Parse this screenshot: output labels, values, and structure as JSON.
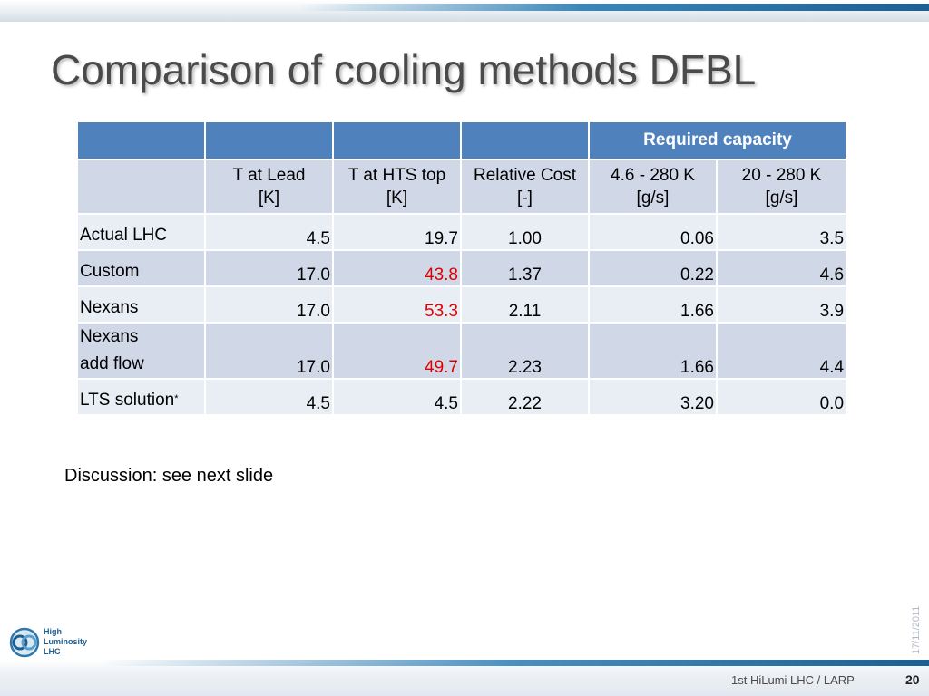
{
  "slide": {
    "title": "Comparison of cooling methods DFBL",
    "discussion": "Discussion: see next slide",
    "date": "17/11/2011",
    "footer": "1st  HiLumi LHC / LARP",
    "page_number": "20",
    "logo": {
      "line1": "High",
      "line2": "Luminosity",
      "line3": "LHC"
    },
    "colors": {
      "header": "#4f81bd",
      "row_dark": "#d0d8e8",
      "row_light": "#e9edf4",
      "highlight": "#e00000"
    }
  },
  "table": {
    "group_header": "Required capacity",
    "columns": [
      {
        "line1": "",
        "line2": ""
      },
      {
        "line1": "T at Lead",
        "line2": "[K]"
      },
      {
        "line1": "T at HTS top",
        "line2": "[K]"
      },
      {
        "line1": "Relative Cost",
        "line2": "[-]"
      },
      {
        "line1": "4.6 - 280 K",
        "line2": "[g/s]"
      },
      {
        "line1": "20 - 280 K",
        "line2": "[g/s]"
      }
    ],
    "rows": [
      {
        "name_line1": "Actual LHC",
        "name_line2": "",
        "t_lead": "4.5",
        "t_hts": "19.7",
        "cost": "1.00",
        "cap_46": "0.06",
        "cap_20": "3.5"
      },
      {
        "name_line1": "Custom",
        "name_line2": "",
        "t_lead": "17.0",
        "t_hts": "43.8",
        "cost": "1.37",
        "cap_46": "0.22",
        "cap_20": "4.6"
      },
      {
        "name_line1": "Nexans",
        "name_line2": "",
        "t_lead": "17.0",
        "t_hts": "53.3",
        "cost": "2.11",
        "cap_46": "1.66",
        "cap_20": "3.9"
      },
      {
        "name_line1": "Nexans",
        "name_line2": "add flow",
        "t_lead": "17.0",
        "t_hts": "49.7",
        "cost": "2.23",
        "cap_46": "1.66",
        "cap_20": "4.4"
      },
      {
        "name_line1": "LTS solution",
        "name_line2": "",
        "name_mark": "*",
        "t_lead": "4.5",
        "t_hts": "4.5",
        "cost": "2.22",
        "cap_46": "3.20",
        "cap_20": "0.0"
      }
    ]
  }
}
